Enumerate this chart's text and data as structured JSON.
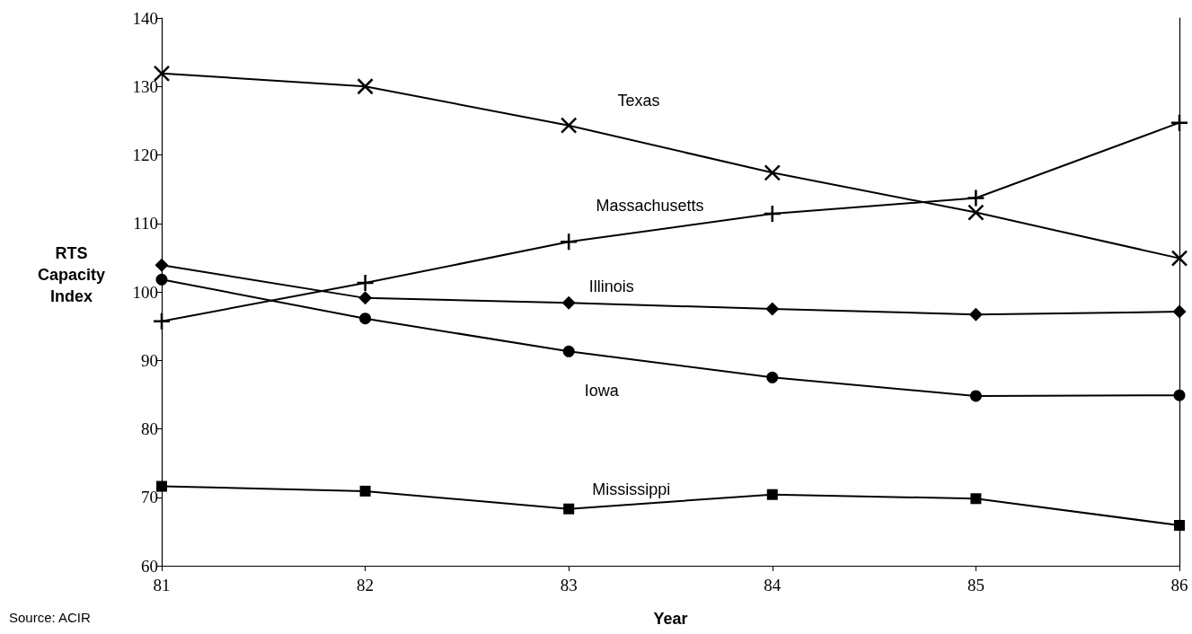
{
  "chart_data": {
    "type": "line",
    "xlabel": "Year",
    "ylabel": "RTS\nCapacity\nIndex",
    "x": [
      81,
      82,
      83,
      84,
      85,
      86
    ],
    "xlim": [
      81,
      86
    ],
    "xticks": [
      81,
      82,
      83,
      84,
      85,
      86
    ],
    "ylim": [
      60,
      140
    ],
    "yticks": [
      60,
      70,
      80,
      90,
      100,
      110,
      120,
      130,
      140
    ],
    "grid": false,
    "legend": false,
    "line_style": "solid",
    "series": [
      {
        "name": "Texas",
        "color": "#000000",
        "marker": "cross",
        "values": [
          131.9,
          130.0,
          124.3,
          117.4,
          111.6,
          104.9
        ]
      },
      {
        "name": "Massachusetts",
        "color": "#000000",
        "marker": "plus",
        "values": [
          95.7,
          101.3,
          107.3,
          111.4,
          113.7,
          124.7
        ]
      },
      {
        "name": "Illinois",
        "color": "#000000",
        "marker": "diamond",
        "values": [
          103.9,
          99.1,
          98.4,
          97.5,
          96.7,
          97.1
        ]
      },
      {
        "name": "Iowa",
        "color": "#000000",
        "marker": "circle",
        "values": [
          101.8,
          96.1,
          91.3,
          87.5,
          84.8,
          84.9
        ]
      },
      {
        "name": "Mississippi",
        "color": "#000000",
        "marker": "square",
        "values": [
          71.6,
          70.9,
          68.3,
          70.4,
          69.8,
          65.9
        ]
      }
    ],
    "annotations": [
      "Source: ACIR"
    ]
  }
}
